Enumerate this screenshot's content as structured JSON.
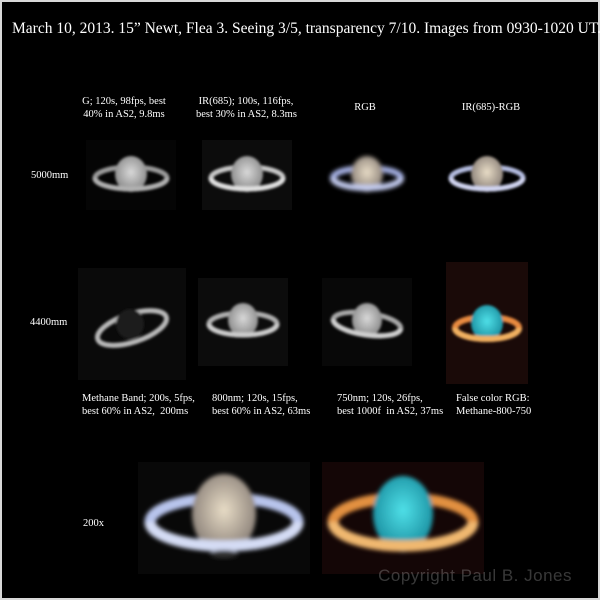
{
  "title": "March 10, 2013. 15” Newt, Flea 3.  Seeing 3/5, transparency 7/10.  Images from 0930-1020 UT.",
  "columns": [
    {
      "caption": "G; 120s, 98fps, best\n40% in AS2, 9.8ms"
    },
    {
      "caption": "IR(685); 100s, 116fps,\nbest 30% in AS2, 8.3ms"
    },
    {
      "caption": "RGB"
    },
    {
      "caption": "IR(685)-RGB"
    }
  ],
  "rows": [
    {
      "label": "5000mm"
    },
    {
      "label": "4400mm"
    },
    {
      "label": "200x"
    }
  ],
  "bottom_captions": [
    {
      "text": "Methane Band; 200s, 5fps,\nbest 60% in AS2,  200ms"
    },
    {
      "text": "800nm; 120s, 15fps,\nbest 60% in AS2, 63ms"
    },
    {
      "text": "750nm; 120s, 26fps,\nbest 1000f  in AS2, 37ms"
    },
    {
      "text": "False color RGB:\nMethane-800-750"
    }
  ],
  "credit": "Copyright Paul B. Jones"
}
